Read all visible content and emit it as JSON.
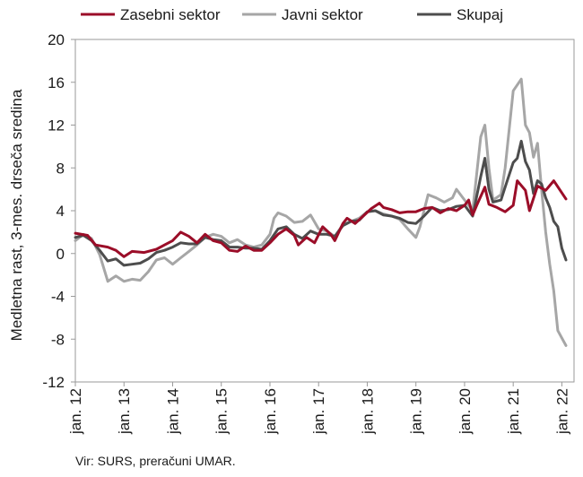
{
  "chart_data": {
    "type": "line",
    "title": "",
    "ylabel": "Medletna rast, 3-mes. drseča sredina",
    "xlabel": "",
    "ylim": [
      -12,
      20
    ],
    "yticks": [
      -12,
      -8,
      -4,
      0,
      4,
      8,
      12,
      16,
      20
    ],
    "xlim": [
      "2012-01",
      "2022-04"
    ],
    "xticks": [
      "jan. 12",
      "jan. 13",
      "jan. 14",
      "jan. 15",
      "jan. 16",
      "jan. 17",
      "jan. 18",
      "jan. 19",
      "jan. 20",
      "jan. 21",
      "jan. 22"
    ],
    "grid": false,
    "legend_position": "top",
    "series": [
      {
        "name": "Zasebni sektor",
        "color": "#9b0d28",
        "points": [
          [
            "2012-01",
            1.9
          ],
          [
            "2012-04",
            1.7
          ],
          [
            "2012-06",
            0.8
          ],
          [
            "2012-09",
            0.6
          ],
          [
            "2012-11",
            0.3
          ],
          [
            "2013-01",
            -0.3
          ],
          [
            "2013-03",
            0.2
          ],
          [
            "2013-06",
            0.1
          ],
          [
            "2013-09",
            0.4
          ],
          [
            "2013-11",
            0.8
          ],
          [
            "2014-01",
            1.2
          ],
          [
            "2014-03",
            2.0
          ],
          [
            "2014-05",
            1.6
          ],
          [
            "2014-07",
            1.0
          ],
          [
            "2014-09",
            1.8
          ],
          [
            "2014-11",
            1.2
          ],
          [
            "2015-01",
            1.0
          ],
          [
            "2015-03",
            0.3
          ],
          [
            "2015-05",
            0.2
          ],
          [
            "2015-07",
            0.7
          ],
          [
            "2015-09",
            0.3
          ],
          [
            "2015-11",
            0.3
          ],
          [
            "2016-01",
            1.0
          ],
          [
            "2016-03",
            1.8
          ],
          [
            "2016-05",
            2.3
          ],
          [
            "2016-07",
            1.7
          ],
          [
            "2016-08",
            0.8
          ],
          [
            "2016-10",
            1.5
          ],
          [
            "2016-12",
            1.0
          ],
          [
            "2017-02",
            2.5
          ],
          [
            "2017-04",
            1.8
          ],
          [
            "2017-05",
            1.2
          ],
          [
            "2017-07",
            2.8
          ],
          [
            "2017-08",
            3.3
          ],
          [
            "2017-10",
            2.8
          ],
          [
            "2017-12",
            3.5
          ],
          [
            "2018-02",
            4.2
          ],
          [
            "2018-04",
            4.7
          ],
          [
            "2018-05",
            4.3
          ],
          [
            "2018-07",
            4.1
          ],
          [
            "2018-09",
            3.8
          ],
          [
            "2018-11",
            3.9
          ],
          [
            "2019-01",
            3.9
          ],
          [
            "2019-03",
            4.2
          ],
          [
            "2019-05",
            4.3
          ],
          [
            "2019-07",
            3.8
          ],
          [
            "2019-09",
            4.2
          ],
          [
            "2019-11",
            4.0
          ],
          [
            "2020-01",
            4.5
          ],
          [
            "2020-02",
            5.0
          ],
          [
            "2020-03",
            3.6
          ],
          [
            "2020-04",
            4.5
          ],
          [
            "2020-06",
            6.2
          ],
          [
            "2020-07",
            4.6
          ],
          [
            "2020-09",
            4.3
          ],
          [
            "2020-11",
            3.9
          ],
          [
            "2021-01",
            4.5
          ],
          [
            "2021-02",
            6.8
          ],
          [
            "2021-04",
            5.9
          ],
          [
            "2021-05",
            4.0
          ],
          [
            "2021-07",
            6.3
          ],
          [
            "2021-09",
            5.9
          ],
          [
            "2021-11",
            6.8
          ],
          [
            "2022-02",
            5.1
          ]
        ]
      },
      {
        "name": "Javni sektor",
        "color": "#a6a6a6",
        "points": [
          [
            "2012-01",
            1.2
          ],
          [
            "2012-03",
            1.8
          ],
          [
            "2012-05",
            1.4
          ],
          [
            "2012-07",
            -0.1
          ],
          [
            "2012-09",
            -2.6
          ],
          [
            "2012-11",
            -2.1
          ],
          [
            "2013-01",
            -2.6
          ],
          [
            "2013-03",
            -2.4
          ],
          [
            "2013-05",
            -2.5
          ],
          [
            "2013-07",
            -1.7
          ],
          [
            "2013-09",
            -0.6
          ],
          [
            "2013-11",
            -0.4
          ],
          [
            "2014-01",
            -1.0
          ],
          [
            "2014-03",
            -0.4
          ],
          [
            "2014-05",
            0.2
          ],
          [
            "2014-07",
            0.8
          ],
          [
            "2014-09",
            1.5
          ],
          [
            "2014-11",
            1.8
          ],
          [
            "2015-01",
            1.6
          ],
          [
            "2015-03",
            1.0
          ],
          [
            "2015-05",
            1.3
          ],
          [
            "2015-07",
            0.8
          ],
          [
            "2015-09",
            0.6
          ],
          [
            "2015-11",
            0.8
          ],
          [
            "2016-01",
            1.8
          ],
          [
            "2016-02",
            3.3
          ],
          [
            "2016-03",
            3.8
          ],
          [
            "2016-05",
            3.5
          ],
          [
            "2016-07",
            2.9
          ],
          [
            "2016-09",
            3.0
          ],
          [
            "2016-11",
            3.6
          ],
          [
            "2017-01",
            2.3
          ],
          [
            "2017-03",
            2.1
          ],
          [
            "2017-05",
            1.6
          ],
          [
            "2017-07",
            2.7
          ],
          [
            "2017-09",
            3.0
          ],
          [
            "2017-11",
            3.3
          ],
          [
            "2018-01",
            3.9
          ],
          [
            "2018-03",
            4.0
          ],
          [
            "2018-05",
            3.7
          ],
          [
            "2018-07",
            3.5
          ],
          [
            "2018-09",
            3.2
          ],
          [
            "2018-11",
            2.3
          ],
          [
            "2019-01",
            1.5
          ],
          [
            "2019-02",
            2.5
          ],
          [
            "2019-04",
            5.5
          ],
          [
            "2019-06",
            5.2
          ],
          [
            "2019-08",
            4.8
          ],
          [
            "2019-10",
            5.2
          ],
          [
            "2019-11",
            6.0
          ],
          [
            "2020-01",
            5.0
          ],
          [
            "2020-03",
            4.0
          ],
          [
            "2020-05",
            10.9
          ],
          [
            "2020-06",
            12.0
          ],
          [
            "2020-07",
            8.0
          ],
          [
            "2020-08",
            5.0
          ],
          [
            "2020-10",
            5.5
          ],
          [
            "2020-11",
            8.0
          ],
          [
            "2021-01",
            15.2
          ],
          [
            "2021-03",
            16.3
          ],
          [
            "2021-04",
            12.0
          ],
          [
            "2021-05",
            11.3
          ],
          [
            "2021-06",
            9.0
          ],
          [
            "2021-07",
            10.3
          ],
          [
            "2021-08",
            6.0
          ],
          [
            "2021-09",
            2.0
          ],
          [
            "2021-10",
            -1.0
          ],
          [
            "2021-11",
            -3.5
          ],
          [
            "2021-12",
            -7.2
          ],
          [
            "2022-02",
            -8.6
          ]
        ]
      },
      {
        "name": "Skupaj",
        "color": "#4d4d4d",
        "points": [
          [
            "2012-01",
            1.5
          ],
          [
            "2012-03",
            1.7
          ],
          [
            "2012-05",
            1.2
          ],
          [
            "2012-07",
            0.3
          ],
          [
            "2012-09",
            -0.7
          ],
          [
            "2012-11",
            -0.5
          ],
          [
            "2013-01",
            -1.1
          ],
          [
            "2013-03",
            -1.0
          ],
          [
            "2013-05",
            -0.9
          ],
          [
            "2013-07",
            -0.5
          ],
          [
            "2013-09",
            0.1
          ],
          [
            "2013-11",
            0.3
          ],
          [
            "2014-01",
            0.6
          ],
          [
            "2014-03",
            1.0
          ],
          [
            "2014-05",
            0.9
          ],
          [
            "2014-07",
            0.9
          ],
          [
            "2014-09",
            1.5
          ],
          [
            "2014-11",
            1.3
          ],
          [
            "2015-01",
            1.2
          ],
          [
            "2015-03",
            0.6
          ],
          [
            "2015-05",
            0.6
          ],
          [
            "2015-07",
            0.5
          ],
          [
            "2015-09",
            0.5
          ],
          [
            "2015-11",
            0.4
          ],
          [
            "2016-01",
            1.2
          ],
          [
            "2016-03",
            2.3
          ],
          [
            "2016-05",
            2.5
          ],
          [
            "2016-07",
            1.8
          ],
          [
            "2016-09",
            1.4
          ],
          [
            "2016-11",
            2.1
          ],
          [
            "2017-01",
            1.8
          ],
          [
            "2017-03",
            1.8
          ],
          [
            "2017-05",
            1.6
          ],
          [
            "2017-07",
            2.6
          ],
          [
            "2017-09",
            3.0
          ],
          [
            "2017-11",
            3.1
          ],
          [
            "2018-01",
            3.9
          ],
          [
            "2018-03",
            4.0
          ],
          [
            "2018-05",
            3.6
          ],
          [
            "2018-07",
            3.5
          ],
          [
            "2018-09",
            3.3
          ],
          [
            "2018-11",
            2.9
          ],
          [
            "2019-01",
            2.8
          ],
          [
            "2019-03",
            3.5
          ],
          [
            "2019-05",
            4.3
          ],
          [
            "2019-07",
            4.0
          ],
          [
            "2019-09",
            4.1
          ],
          [
            "2019-11",
            4.4
          ],
          [
            "2020-01",
            4.5
          ],
          [
            "2020-03",
            3.5
          ],
          [
            "2020-05",
            7.2
          ],
          [
            "2020-06",
            8.9
          ],
          [
            "2020-07",
            6.0
          ],
          [
            "2020-08",
            4.8
          ],
          [
            "2020-10",
            5.0
          ],
          [
            "2020-11",
            6.2
          ],
          [
            "2021-01",
            8.5
          ],
          [
            "2021-02",
            8.9
          ],
          [
            "2021-03",
            10.5
          ],
          [
            "2021-04",
            8.6
          ],
          [
            "2021-05",
            7.8
          ],
          [
            "2021-06",
            5.6
          ],
          [
            "2021-07",
            6.8
          ],
          [
            "2021-08",
            6.5
          ],
          [
            "2021-09",
            5.2
          ],
          [
            "2021-10",
            4.3
          ],
          [
            "2021-11",
            3.0
          ],
          [
            "2021-12",
            2.5
          ],
          [
            "2022-01",
            0.5
          ],
          [
            "2022-02",
            -0.6
          ]
        ]
      }
    ]
  },
  "source": "Vir: SURS, preračuni UMAR."
}
